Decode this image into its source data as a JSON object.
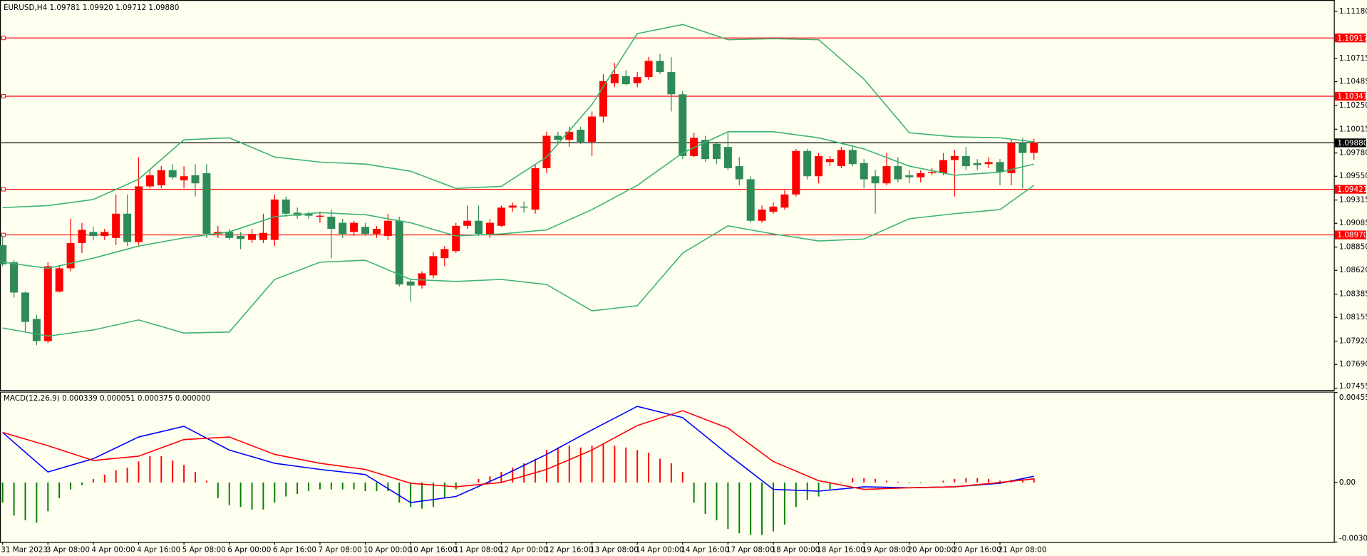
{
  "chart_data": [
    {
      "type": "candlestick",
      "title": "EURUSD,H4  1.09781 1.09920 1.09712 1.09880",
      "up_color": "#ff0000",
      "down_color": "#2e8b57",
      "open": [
        1.0887,
        1.087,
        1.084,
        1.0814,
        1.0792,
        1.0841,
        1.0864,
        1.0889,
        1.09,
        1.0896,
        1.0894,
        1.0918,
        1.089,
        1.0945,
        1.0946,
        1.0961,
        1.0951,
        1.0956,
        1.0958,
        1.0898,
        1.09,
        1.0896,
        1.0892,
        1.0892,
        1.0892,
        1.0932,
        1.0919,
        1.0918,
        1.0915,
        1.0915,
        1.0909,
        1.09,
        1.0905,
        1.0898,
        1.0896,
        1.0911,
        1.0851,
        1.0847,
        1.0857,
        1.0874,
        1.0881,
        1.0906,
        1.0911,
        1.0898,
        1.0906,
        1.0924,
        1.0925,
        1.0922,
        1.0963,
        1.0995,
        1.0991,
        1.1001,
        1.0989,
        1.1014,
        1.1047,
        1.1054,
        1.1047,
        1.1053,
        1.1069,
        1.1058,
        1.1036,
        1.0975,
        1.0991,
        1.0987,
        1.0984,
        1.0965,
        1.0952,
        1.0911,
        1.092,
        1.0924,
        1.0937,
        1.098,
        1.0955,
        1.0969,
        1.0965,
        1.0981,
        1.0968,
        1.0955,
        1.0948,
        1.0965,
        1.0956,
        1.0954,
        1.0958,
        1.0958,
        1.0971,
        1.0975,
        1.0968,
        1.0967,
        1.0969,
        1.0958,
        1.0988,
        1.09781
      ],
      "high": [
        1.0896,
        1.0872,
        1.0841,
        1.0818,
        1.087,
        1.0866,
        1.0913,
        1.0909,
        1.0905,
        1.0903,
        1.0937,
        1.0937,
        1.0974,
        1.0961,
        1.0965,
        1.0967,
        1.0965,
        1.0967,
        1.0967,
        1.0906,
        1.0903,
        1.09,
        1.0903,
        1.0918,
        1.0937,
        1.0935,
        1.0924,
        1.092,
        1.092,
        1.0922,
        1.0913,
        1.0911,
        1.0909,
        1.0906,
        1.0918,
        1.0915,
        1.0854,
        1.0861,
        1.088,
        1.0886,
        1.0909,
        1.0926,
        1.0926,
        1.0913,
        1.0926,
        1.0929,
        1.093,
        1.0967,
        1.0999,
        1.0999,
        1.1004,
        1.1004,
        1.1019,
        1.1056,
        1.1067,
        1.106,
        1.1058,
        1.1073,
        1.1076,
        1.1073,
        1.1039,
        1.0998,
        1.0995,
        1.0989,
        1.0998,
        1.0974,
        1.0955,
        1.0926,
        1.0929,
        1.0941,
        1.0982,
        1.0982,
        1.0978,
        1.0975,
        1.0984,
        1.0984,
        1.0972,
        1.0961,
        1.0978,
        1.0974,
        1.0961,
        1.0961,
        1.0963,
        1.0978,
        1.0981,
        1.0984,
        1.0972,
        1.0974,
        1.0972,
        1.0991,
        1.0993,
        1.0992
      ],
      "low": [
        1.0866,
        1.0835,
        1.0801,
        1.0788,
        1.079,
        1.084,
        1.0861,
        1.0879,
        1.0892,
        1.0892,
        1.0887,
        1.0886,
        1.0887,
        1.0943,
        1.0943,
        1.0952,
        1.0943,
        1.0935,
        1.0894,
        1.0894,
        1.0892,
        1.0883,
        1.0889,
        1.0889,
        1.0886,
        1.0915,
        1.0913,
        1.0913,
        1.0909,
        1.0874,
        1.0894,
        1.0896,
        1.0896,
        1.0894,
        1.0892,
        1.0846,
        1.0831,
        1.0844,
        1.0854,
        1.0866,
        1.0879,
        1.0903,
        1.0896,
        1.0894,
        1.0905,
        1.092,
        1.0919,
        1.0918,
        1.0958,
        1.0987,
        1.0984,
        1.0987,
        1.0975,
        1.1008,
        1.1043,
        1.1045,
        1.1043,
        1.105,
        1.1056,
        1.1019,
        1.0972,
        1.0974,
        1.0969,
        1.0967,
        1.0961,
        1.0946,
        1.0909,
        1.0909,
        1.0918,
        1.0922,
        1.0935,
        1.0952,
        1.0948,
        1.0965,
        1.0963,
        1.0965,
        1.0943,
        1.0918,
        1.0946,
        1.0949,
        1.0948,
        1.0949,
        1.0956,
        1.0956,
        1.0935,
        1.0961,
        1.0961,
        1.0963,
        1.0946,
        1.0946,
        1.0943,
        1.09712
      ],
      "close": [
        1.0868,
        1.084,
        1.0811,
        1.0792,
        1.0866,
        1.0864,
        1.0889,
        1.0902,
        1.0896,
        1.09,
        1.0918,
        1.089,
        1.0945,
        1.0956,
        1.0961,
        1.0954,
        1.0955,
        1.0948,
        1.0898,
        1.09,
        1.0894,
        1.0893,
        1.0898,
        1.0899,
        1.0932,
        1.0918,
        1.0916,
        1.0916,
        1.0916,
        1.0903,
        1.0898,
        1.0909,
        1.0898,
        1.0903,
        1.0911,
        1.0848,
        1.0847,
        1.0859,
        1.0876,
        1.0883,
        1.0906,
        1.0911,
        1.0898,
        1.0909,
        1.0924,
        1.0926,
        1.0924,
        1.0963,
        1.0995,
        1.0991,
        1.0999,
        1.0989,
        1.1014,
        1.1049,
        1.1056,
        1.1046,
        1.1053,
        1.1069,
        1.1058,
        1.1036,
        1.0975,
        1.0993,
        1.0972,
        1.0972,
        1.0963,
        1.0952,
        1.0911,
        1.0922,
        1.0925,
        1.0937,
        1.098,
        1.0955,
        1.0975,
        1.0972,
        1.0981,
        1.0967,
        1.0952,
        1.0948,
        1.0965,
        1.0952,
        1.0954,
        1.0958,
        1.0959,
        1.0971,
        1.0975,
        1.0965,
        1.0966,
        1.0969,
        1.0959,
        1.0988,
        1.0978,
        1.0988
      ],
      "series": [
        {
          "color": "#3cb371",
          "x": [
            0,
            4,
            8,
            12,
            16,
            20,
            24,
            28,
            32,
            36,
            40,
            44,
            48,
            52,
            56,
            60,
            64,
            68,
            72,
            76,
            80,
            84,
            88,
            91
          ],
          "values": [
            1.0924,
            1.0926,
            1.0932,
            1.0952,
            1.0991,
            1.0993,
            1.0974,
            1.0969,
            1.0967,
            1.096,
            1.0943,
            1.0945,
            1.0974,
            1.1026,
            1.1096,
            1.1105,
            1.109,
            1.1091,
            1.109,
            1.1051,
            1.0998,
            1.0994,
            1.0993,
            1.0989
          ]
        },
        {
          "color": "#3cb371",
          "x": [
            0,
            4,
            8,
            12,
            16,
            20,
            24,
            28,
            32,
            36,
            40,
            44,
            48,
            52,
            56,
            60,
            64,
            68,
            72,
            76,
            80,
            84,
            88,
            91
          ],
          "values": [
            1.087,
            1.0864,
            1.0874,
            1.0886,
            1.0894,
            1.09,
            1.0915,
            1.0919,
            1.0917,
            1.0909,
            1.0896,
            1.0898,
            1.0902,
            1.0922,
            1.0946,
            1.0978,
            1.0999,
            1.0999,
            1.0993,
            1.0982,
            1.0965,
            1.0956,
            1.0959,
            1.0967
          ]
        },
        {
          "color": "#3cb371",
          "x": [
            0,
            4,
            8,
            12,
            16,
            20,
            24,
            28,
            32,
            36,
            40,
            44,
            48,
            52,
            56,
            60,
            64,
            68,
            72,
            76,
            80,
            84,
            88,
            91
          ],
          "values": [
            1.0805,
            1.0797,
            1.0803,
            1.0813,
            1.08,
            1.0801,
            1.0853,
            1.087,
            1.0872,
            1.0853,
            1.0851,
            1.0853,
            1.0848,
            1.0822,
            1.0827,
            1.0879,
            1.0906,
            1.0898,
            1.0891,
            1.0893,
            1.0913,
            1.0918,
            1.0922,
            1.0946
          ]
        }
      ],
      "levels": [
        1.10917,
        1.10341,
        1.09421,
        {
          "value": 1.0897,
          "label": "1.08970"
        }
      ],
      "level_color": "#ff0000",
      "last": {
        "value": 1.0988,
        "label": "1.09880"
      },
      "last_color": "#000000",
      "ylim": [
        1.07438,
        1.11275
      ],
      "yticks": [
        {
          "value": 1.1118,
          "label": "1.11180"
        },
        1.10715,
        1.10485,
        {
          "value": 1.1025,
          "label": "1.10250"
        },
        1.10015,
        {
          "value": 1.0978,
          "label": "1.09780"
        },
        {
          "value": 1.0955,
          "label": "1.09550"
        },
        1.09315,
        1.09085,
        {
          "value": 1.0885,
          "label": "1.08850"
        },
        {
          "value": 1.0862,
          "label": "1.08620"
        },
        1.08385,
        1.08155,
        {
          "value": 1.0792,
          "label": "1.07920"
        },
        {
          "value": 1.0769,
          "label": "1.07690"
        },
        1.07455
      ]
    },
    {
      "type": "bar",
      "title": "MACD(12,26,9) 0.000339 0.000051 0.000375 0.000000",
      "positive_color": "#ff0000",
      "negative_color": "#008000",
      "categories": [
        "31 Mar 2023",
        null,
        null,
        null,
        "3 Apr 08:00",
        null,
        null,
        null,
        "4 Apr 00:00",
        null,
        null,
        null,
        "4 Apr 16:00",
        null,
        null,
        null,
        "5 Apr 08:00",
        null,
        null,
        null,
        "6 Apr 00:00",
        null,
        null,
        null,
        "6 Apr 16:00",
        null,
        null,
        null,
        "7 Apr 08:00",
        null,
        null,
        null,
        "10 Apr 00:00",
        null,
        null,
        null,
        "10 Apr 16:00",
        null,
        null,
        null,
        "11 Apr 08:00",
        null,
        null,
        null,
        "12 Apr 00:00",
        null,
        null,
        null,
        "12 Apr 16:00",
        null,
        null,
        null,
        "13 Apr 08:00",
        null,
        null,
        null,
        "14 Apr 00:00",
        null,
        null,
        null,
        "14 Apr 16:00",
        null,
        null,
        null,
        "17 Apr 08:00",
        null,
        null,
        null,
        "18 Apr 00:00",
        null,
        null,
        null,
        "18 Apr 16:00",
        null,
        null,
        null,
        "19 Apr 08:00",
        null,
        null,
        null,
        "20 Apr 00:00",
        null,
        null,
        null,
        "20 Apr 16:00",
        null,
        null,
        null,
        "21 Apr 08:00",
        null,
        null,
        null
      ],
      "values": [
        -0.00102,
        -0.00168,
        -0.00191,
        -0.00204,
        -0.00146,
        -0.0008,
        -0.00035,
        -0.00013,
        0.00018,
        0.0004,
        0.00062,
        0.00075,
        0.00106,
        0.00133,
        0.00133,
        0.00111,
        0.00089,
        0.00053,
        9e-05,
        -0.0008,
        -0.00115,
        -0.00124,
        -0.00137,
        -0.00137,
        -0.00102,
        -0.00071,
        -0.00058,
        -0.00044,
        -0.00035,
        -0.00035,
        -0.00035,
        -0.00035,
        -0.00044,
        -0.00044,
        -0.00044,
        -0.00102,
        -0.00124,
        -0.00133,
        -0.00124,
        -0.0008,
        -0.00035,
        -2e-05,
        0.00018,
        0.00031,
        0.00053,
        0.00075,
        0.00097,
        0.0012,
        0.00164,
        0.00177,
        0.00186,
        0.00177,
        0.00186,
        0.00195,
        0.00186,
        0.00177,
        0.00164,
        0.00151,
        0.0012,
        0.00097,
        0.00053,
        -0.00102,
        -0.00159,
        -0.00191,
        -0.00235,
        -0.00257,
        -0.00266,
        -0.00266,
        -0.00248,
        -0.00213,
        -0.00124,
        -0.00089,
        -0.00071,
        -0.00035,
        -4e-05,
        0.00022,
        0.00022,
        0.00018,
        9e-05,
        4e-05,
        -4e-05,
        -4e-05,
        1e-05,
        9e-05,
        0.00018,
        0.00022,
        0.00022,
        0.00018,
        9e-05,
        0.00013,
        0.00022,
        0.00022
      ],
      "series": [
        {
          "color": "#0000ff",
          "x": [
            0,
            4,
            8,
            12,
            16,
            20,
            24,
            28,
            32,
            36,
            40,
            44,
            48,
            52,
            56,
            60,
            64,
            68,
            72,
            76,
            80,
            84,
            88,
            91
          ],
          "values": [
            0.00253,
            0.00053,
            0.0012,
            0.0023,
            0.00284,
            0.00164,
            0.00097,
            0.00066,
            0.0004,
            -0.00102,
            -0.00071,
            0.00031,
            0.00142,
            0.00266,
            0.00385,
            0.00328,
            0.00142,
            -0.00035,
            -0.00044,
            -0.00022,
            -0.00027,
            -0.00022,
            -4e-05,
            0.00031
          ]
        },
        {
          "color": "#ff0000",
          "x": [
            0,
            4,
            8,
            12,
            16,
            20,
            24,
            28,
            32,
            36,
            40,
            44,
            48,
            52,
            56,
            60,
            64,
            68,
            72,
            76,
            80,
            84,
            88,
            91
          ],
          "values": [
            0.00253,
            0.00186,
            0.00111,
            0.00133,
            0.00217,
            0.0023,
            0.00142,
            0.00097,
            0.00066,
            -4e-05,
            -0.00022,
            0,
            0.00066,
            0.00164,
            0.00288,
            0.00363,
            0.00275,
            0.00106,
            9e-05,
            -0.00035,
            -0.00027,
            -0.00022,
            0,
            0.00018
          ]
        }
      ],
      "ylim": [
        -0.003014,
        0.00455
      ],
      "yticks": [
        0.00455,
        {
          "value": 0,
          "label": "0.00"
        },
        -0.003014
      ]
    }
  ]
}
